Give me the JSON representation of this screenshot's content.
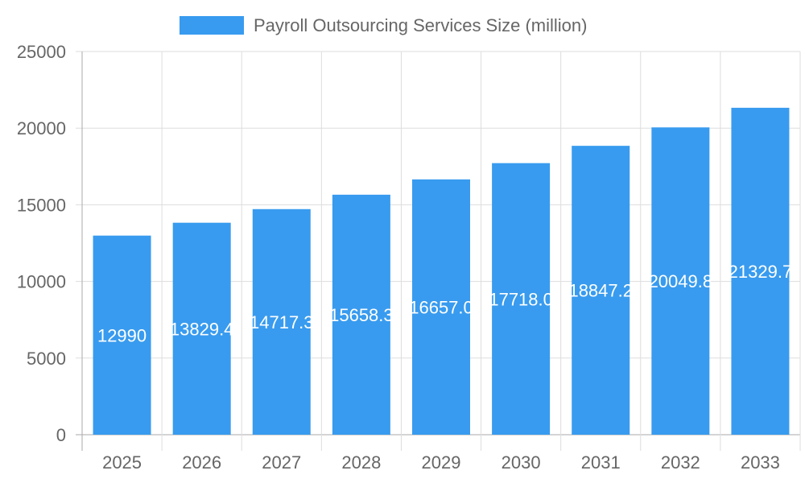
{
  "chart_data": {
    "type": "bar",
    "categories": [
      "2025",
      "2026",
      "2027",
      "2028",
      "2029",
      "2030",
      "2031",
      "2032",
      "2033"
    ],
    "series": [
      {
        "name": "Payroll Outsourcing Services Size (million)",
        "values": [
          12990,
          13829.4,
          14717.3,
          15658.3,
          16657.0,
          17718.0,
          18847.2,
          20049.8,
          21329.7
        ],
        "color": "#389bef"
      }
    ],
    "data_labels": [
      "12990",
      "13829.4",
      "14717.3",
      "15658.3",
      "16657.0",
      "17718.0",
      "18847.2",
      "20049.8",
      "21329.7"
    ],
    "ylim": [
      0,
      25000
    ],
    "yticks": [
      0,
      5000,
      10000,
      15000,
      20000,
      25000
    ],
    "grid": true,
    "legend": "top-center"
  }
}
